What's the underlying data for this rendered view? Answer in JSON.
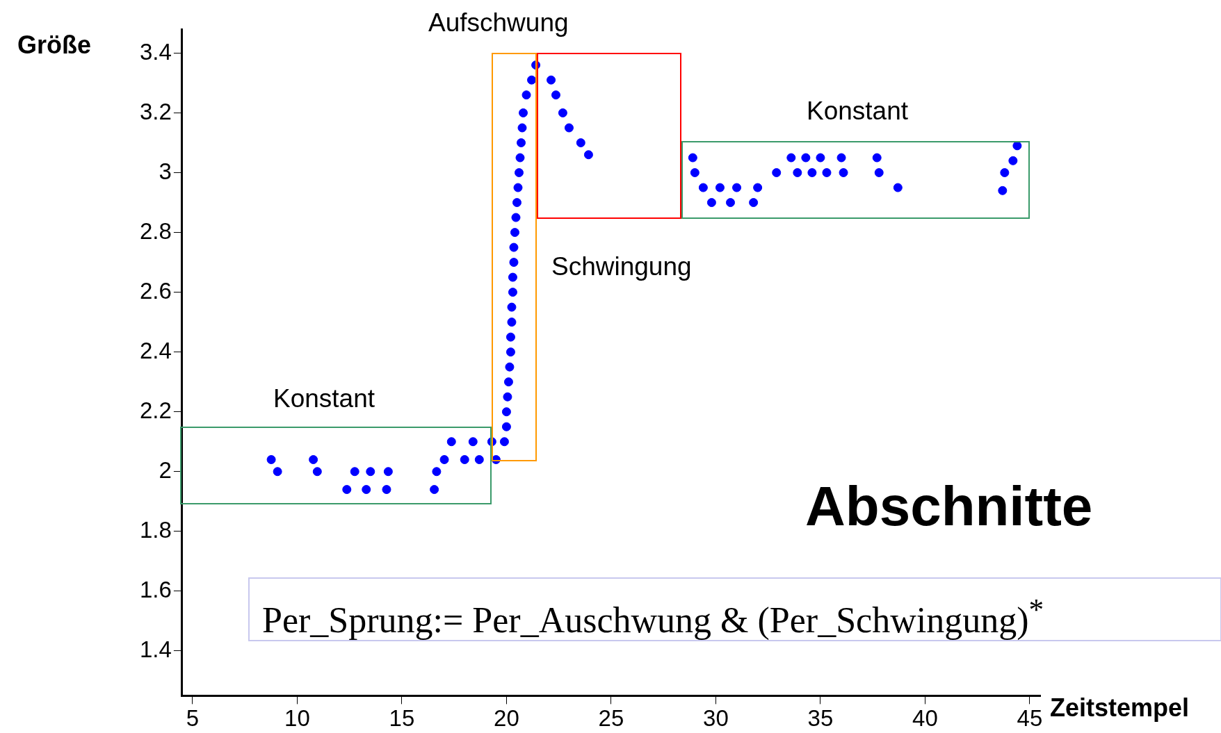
{
  "chart_data": {
    "type": "scatter",
    "xlabel": "Zeitstempel",
    "ylabel": "Größe",
    "x": [
      8.76,
      9.06,
      10.77,
      10.96,
      12.37,
      12.75,
      13.3,
      13.5,
      14.27,
      14.35,
      16.55,
      16.66,
      17.03,
      17.37,
      18.0,
      18.4,
      18.7,
      19.3,
      19.5,
      19.9,
      20.0,
      20.0,
      20.05,
      20.1,
      20.15,
      20.2,
      20.2,
      20.25,
      20.25,
      20.3,
      20.3,
      20.35,
      20.35,
      20.4,
      20.45,
      20.5,
      20.55,
      20.6,
      20.65,
      20.7,
      20.75,
      20.8,
      20.95,
      21.2,
      21.4,
      22.13,
      22.36,
      22.69,
      22.99,
      23.55,
      23.92,
      28.9,
      29.0,
      29.4,
      29.8,
      30.2,
      30.7,
      31.0,
      31.8,
      32.0,
      32.9,
      33.6,
      33.9,
      34.3,
      34.6,
      35.0,
      35.3,
      36.0,
      36.1,
      37.7,
      37.8,
      38.7,
      43.7,
      43.8,
      44.2,
      44.4
    ],
    "series": [
      {
        "color": "#0000ff",
        "values": [
          2.04,
          2.0,
          2.04,
          2.0,
          1.94,
          2.0,
          1.94,
          2.0,
          1.94,
          2.0,
          1.94,
          2.0,
          2.04,
          2.1,
          2.04,
          2.1,
          2.04,
          2.1,
          2.04,
          2.1,
          2.15,
          2.2,
          2.25,
          2.3,
          2.35,
          2.4,
          2.45,
          2.5,
          2.55,
          2.6,
          2.65,
          2.7,
          2.75,
          2.8,
          2.85,
          2.9,
          2.95,
          3.0,
          3.05,
          3.1,
          3.15,
          3.2,
          3.26,
          3.31,
          3.36,
          3.31,
          3.26,
          3.2,
          3.15,
          3.1,
          3.06,
          3.05,
          3.0,
          2.95,
          2.9,
          2.95,
          2.9,
          2.95,
          2.9,
          2.95,
          3.0,
          3.05,
          3.0,
          3.05,
          3.0,
          3.05,
          3.0,
          3.05,
          3.0,
          3.05,
          3.0,
          2.95,
          2.94,
          3.0,
          3.04,
          3.09
        ]
      }
    ],
    "xlim": [
      4.5,
      45.5
    ],
    "xticks": [
      5,
      10,
      15,
      20,
      25,
      30,
      35,
      40,
      45
    ],
    "ylim": [
      1.25,
      3.48
    ],
    "yticks": [
      1.4,
      1.6,
      1.8,
      2,
      2.2,
      2.4,
      2.6,
      2.8,
      3,
      3.2,
      3.4
    ],
    "grid": false,
    "legend": false,
    "marker": "circle",
    "annotations": [
      "Konstant",
      "Aufschwung",
      "Schwingung",
      "Konstant",
      "Abschnitte",
      "Per_Sprung:= Per_Auschwung & (Per_Schwingung)$^{*}$"
    ]
  }
}
